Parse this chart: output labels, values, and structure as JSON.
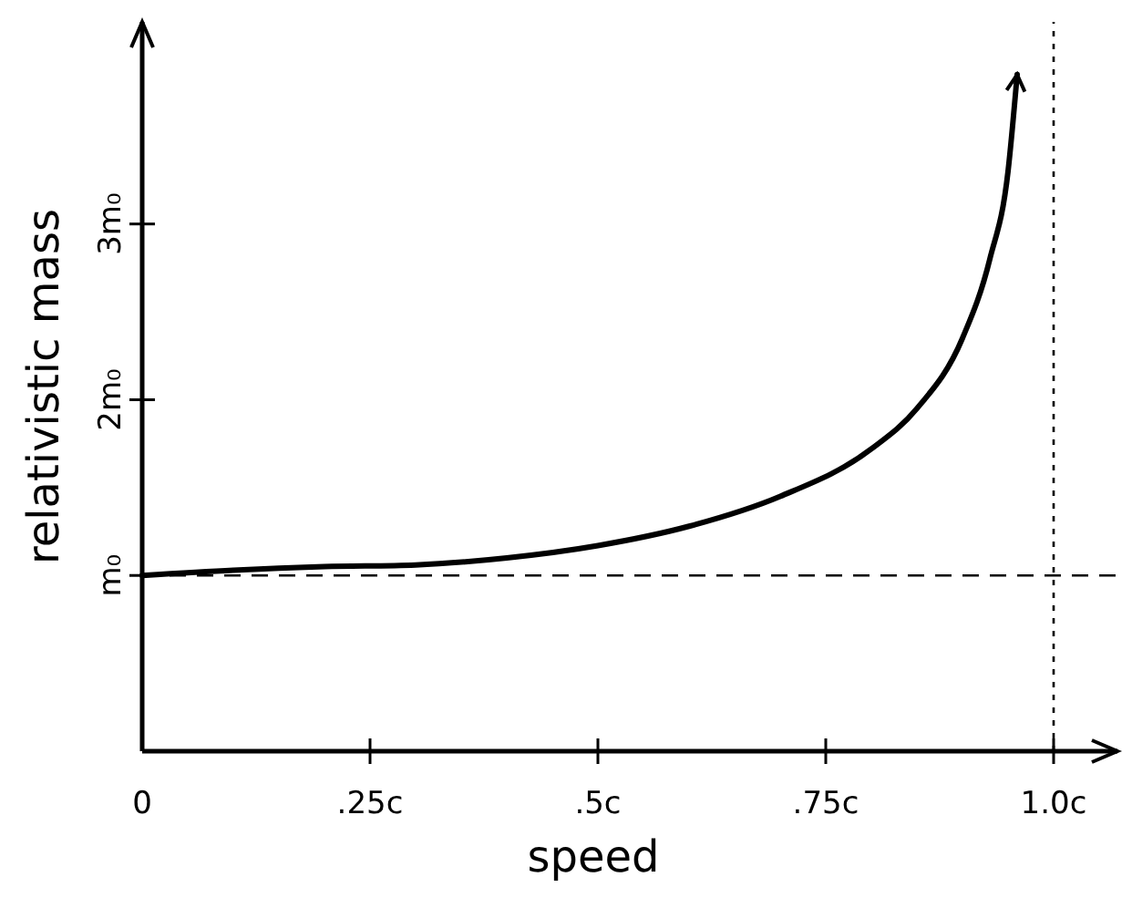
{
  "chart_data": {
    "type": "line",
    "xlabel": "speed",
    "ylabel": "relativistic mass",
    "x": [
      0,
      0.1,
      0.2,
      0.3,
      0.4,
      0.5,
      0.6,
      0.7,
      0.8,
      0.85,
      0.9,
      0.93,
      0.95,
      0.96
    ],
    "series": [
      {
        "color": "#000000",
        "values": [
          1.0,
          1.03,
          1.05,
          1.06,
          1.1,
          1.17,
          1.28,
          1.45,
          1.72,
          1.95,
          2.35,
          2.8,
          3.3,
          3.85
        ]
      }
    ],
    "xlim": [
      0,
      1.07
    ],
    "ylim": [
      0,
      4.15
    ],
    "xticks": [
      0,
      {
        "value": 0.25,
        "label": ".25c"
      },
      {
        "value": 0.5,
        "label": ".5c"
      },
      {
        "value": 0.75,
        "label": ".75c"
      },
      {
        "value": 1,
        "label": "1.0c"
      }
    ],
    "yticks": [
      {
        "value": 1,
        "label": "m₀"
      },
      {
        "value": 2,
        "label": "2m₀"
      },
      {
        "value": 3,
        "label": "3m₀"
      }
    ],
    "ref_lines": [
      {
        "axis": "y",
        "value": 1,
        "line_style": "dashed"
      },
      {
        "axis": "x",
        "value": 1,
        "line_style": "dotted"
      }
    ],
    "grid": false,
    "line_style": "solid"
  }
}
